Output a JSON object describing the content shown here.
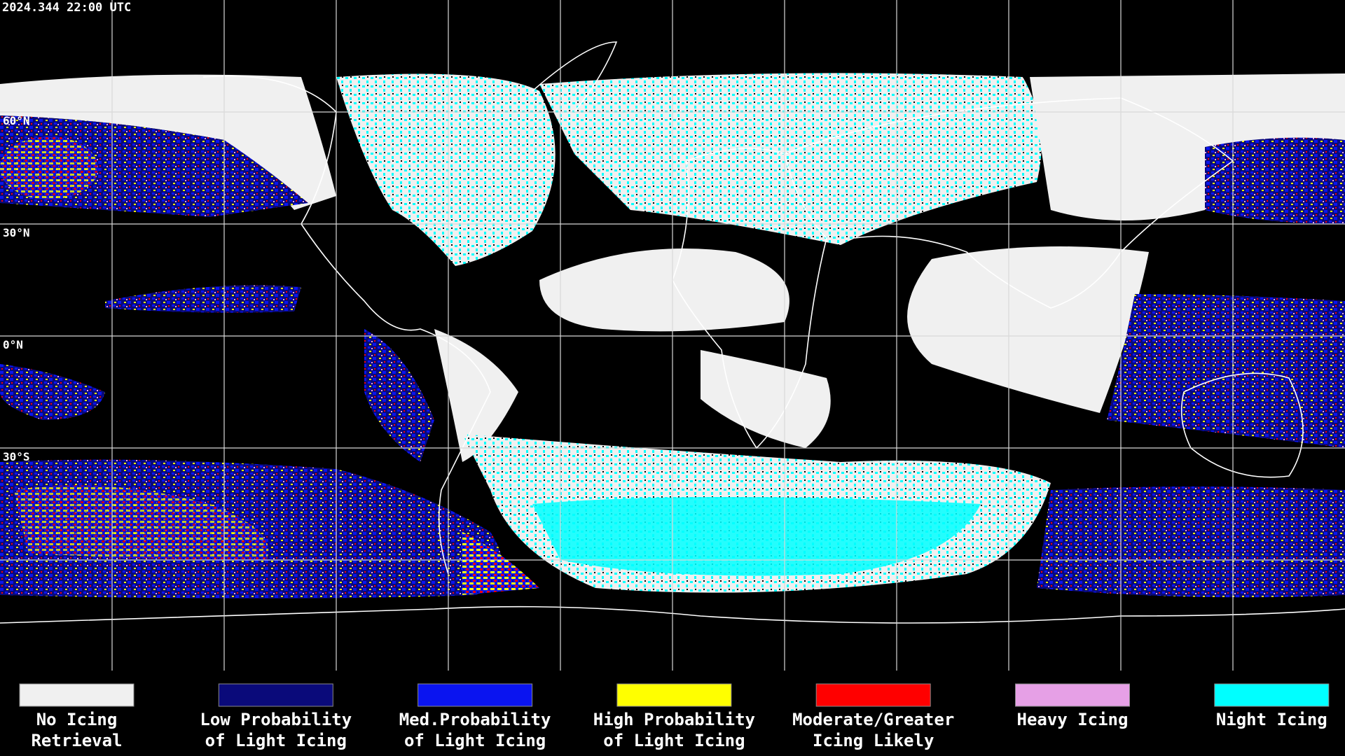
{
  "header": {
    "timestamp": "2024.344 22:00 UTC"
  },
  "map": {
    "latitude_labels": [
      "60°N",
      "30°N",
      "0°N",
      "30°S"
    ]
  },
  "legend": [
    {
      "label": [
        "No Icing",
        "Retrieval"
      ],
      "color": "#f0f0f0"
    },
    {
      "label": [
        "Low Probability",
        "of Light Icing"
      ],
      "color": "#0a0a7a"
    },
    {
      "label": [
        "Med.Probability",
        "of Light Icing"
      ],
      "color": "#0a14f0"
    },
    {
      "label": [
        "High Probability",
        "of Light Icing"
      ],
      "color": "#ffff00"
    },
    {
      "label": [
        "Moderate/Greater",
        "Icing Likely"
      ],
      "color": "#ff0000"
    },
    {
      "label": [
        "Heavy Icing"
      ],
      "color": "#e6a0e6"
    },
    {
      "label": [
        "Night Icing"
      ],
      "color": "#00ffff"
    }
  ]
}
